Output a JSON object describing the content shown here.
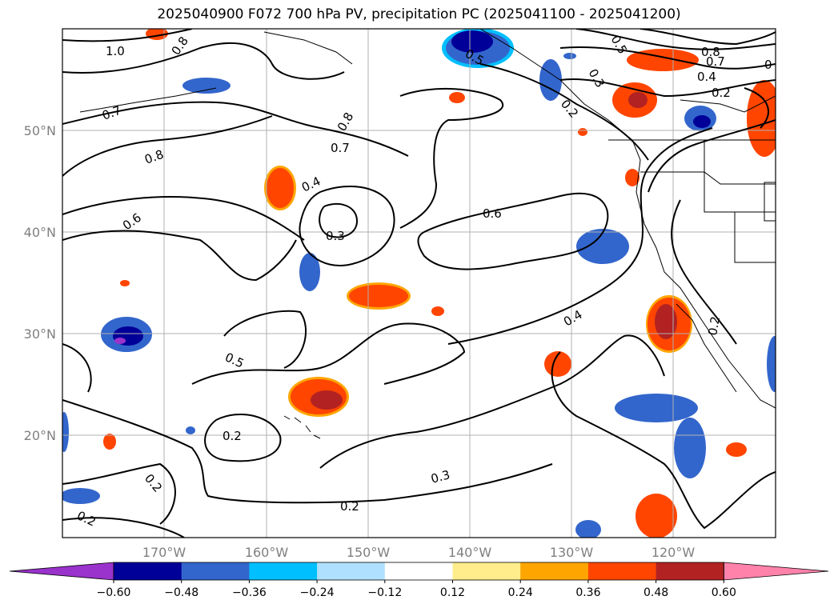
{
  "title": "2025040900 F072 700 hPa PV, precipitation PC (2025041100 - 2025041200)",
  "lat_labels": [
    "50°N",
    "40°N",
    "30°N",
    "20°N"
  ],
  "lon_labels": [
    "170°W",
    "160°W",
    "150°W",
    "140°W",
    "130°W",
    "120°W"
  ],
  "colorbar": {
    "colors": [
      "#9933cc",
      "#000099",
      "#3366cc",
      "#00bfff",
      "#b0e0ff",
      "#ffffff",
      "#ffec8b",
      "#ffa500",
      "#ff4500",
      "#b22222",
      "#ff82ab"
    ],
    "ticks": [
      "−0.60",
      "−0.48",
      "−0.36",
      "−0.24",
      "−0.12",
      "0.12",
      "0.24",
      "0.36",
      "0.48",
      "0.60"
    ]
  },
  "contour_labels": [
    "1.0",
    "0.8",
    "0.7",
    "0.8",
    "0.7",
    "0.8",
    "0.6",
    "0.4",
    "0.3",
    "0.6",
    "0.5",
    "0.5",
    "0.3",
    "0.8",
    "0.7",
    "0.4",
    "0.2",
    "0.4",
    "0.5",
    "0.2",
    "0.2",
    "0.2",
    "0.3",
    "0.2",
    "0.2",
    "0.2",
    "0"
  ]
}
